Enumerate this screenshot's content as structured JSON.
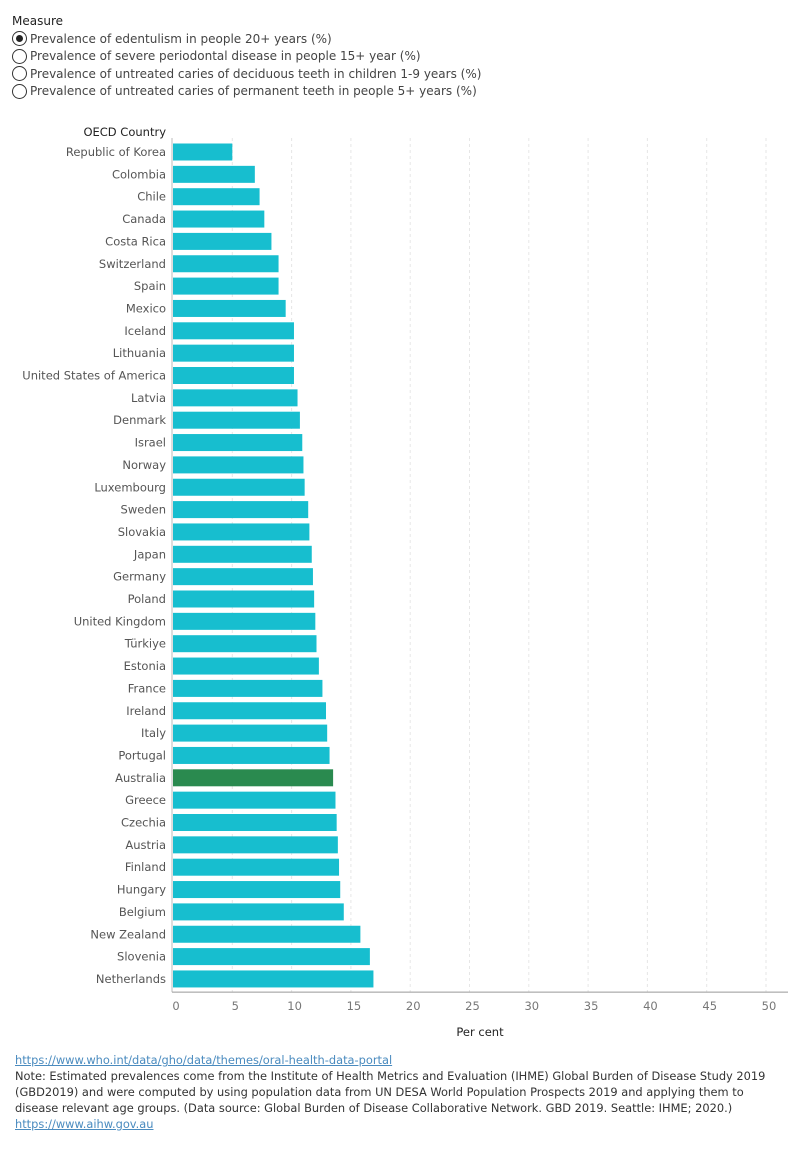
{
  "measure": {
    "title": "Measure",
    "selected_index": 0,
    "options": [
      "Prevalence of edentulism in people 20+ years (%)",
      "Prevalence of severe periodontal disease in people 15+ year (%)",
      "Prevalence of untreated caries of deciduous teeth in children 1-9 years (%)",
      "Prevalence of untreated caries of permanent teeth in people 5+ years (%)"
    ]
  },
  "chart_data": {
    "type": "bar",
    "orientation": "horizontal",
    "category_header": "OECD Country",
    "xlabel": "Per cent",
    "xlim": [
      0,
      50
    ],
    "xticks": [
      0,
      5,
      10,
      15,
      20,
      25,
      30,
      35,
      40,
      45,
      50
    ],
    "grid": true,
    "bar_color": "#17becf",
    "highlight_color": "#2a8a4f",
    "highlight_category": "Australia",
    "categories": [
      "Republic of Korea",
      "Colombia",
      "Chile",
      "Canada",
      "Costa Rica",
      "Switzerland",
      "Spain",
      "Mexico",
      "Iceland",
      "Lithuania",
      "United States of America",
      "Latvia",
      "Denmark",
      "Israel",
      "Norway",
      "Luxembourg",
      "Sweden",
      "Slovakia",
      "Japan",
      "Germany",
      "Poland",
      "United Kingdom",
      "Türkiye",
      "Estonia",
      "France",
      "Ireland",
      "Italy",
      "Portugal",
      "Australia",
      "Greece",
      "Czechia",
      "Austria",
      "Finland",
      "Hungary",
      "Belgium",
      "New Zealand",
      "Slovenia",
      "Netherlands"
    ],
    "values": [
      5.0,
      6.9,
      7.3,
      7.7,
      8.3,
      8.9,
      8.9,
      9.5,
      10.2,
      10.2,
      10.2,
      10.5,
      10.7,
      10.9,
      11.0,
      11.1,
      11.4,
      11.5,
      11.7,
      11.8,
      11.9,
      12.0,
      12.1,
      12.3,
      12.6,
      12.9,
      13.0,
      13.2,
      13.5,
      13.7,
      13.8,
      13.9,
      14.0,
      14.1,
      14.4,
      15.8,
      16.6,
      16.9
    ]
  },
  "footer": {
    "link1": "https://www.who.int/data/gho/data/themes/oral-health-data-portal",
    "note": "Note: Estimated prevalences come from the Institute of Health Metrics and Evaluation (IHME) Global Burden of Disease Study 2019 (GBD2019) and were computed by using population data from UN DESA World Population Prospects 2019 and applying them to disease relevant age groups. (Data source: Global Burden of Disease Collaborative Network. GBD 2019. Seattle: IHME; 2020.)",
    "link2": "https://www.aihw.gov.au"
  }
}
